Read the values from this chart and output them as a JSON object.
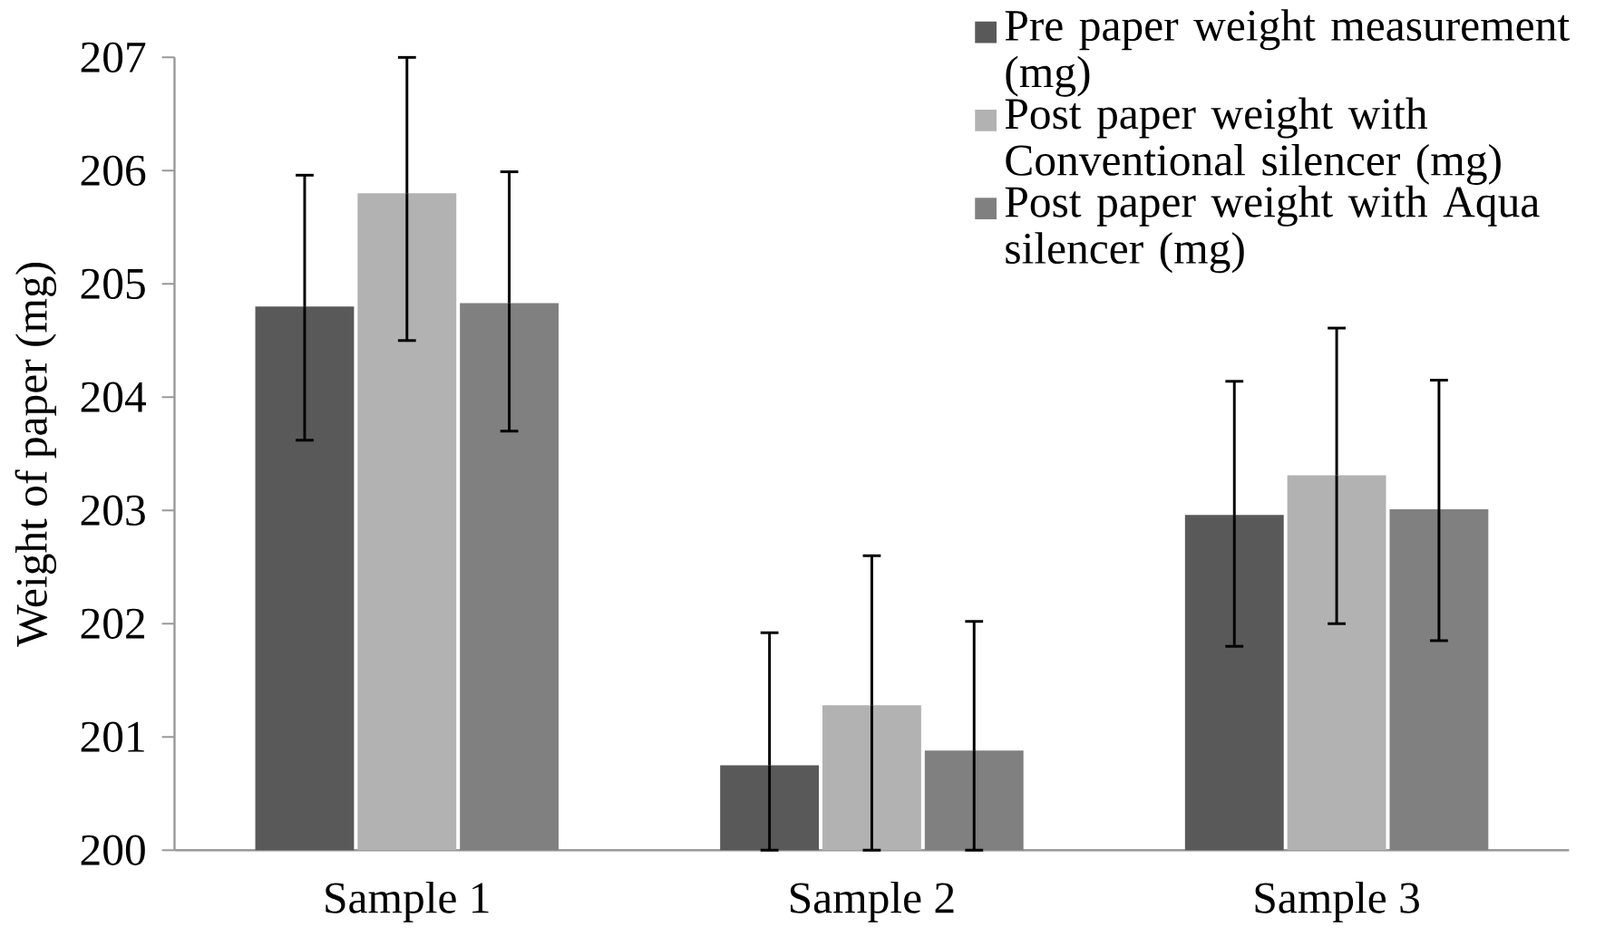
{
  "chart_data": {
    "type": "bar",
    "ylabel": "Weight of paper (mg)",
    "categories": [
      "Sample 1",
      "Sample 2",
      "Sample 3"
    ],
    "ylim": [
      200,
      207
    ],
    "yticks": [
      200,
      201,
      202,
      203,
      204,
      205,
      206,
      207
    ],
    "legend": "top right",
    "series": [
      {
        "name": "Pre paper weight measurement (mg)",
        "color": "#595959",
        "values": [
          204.8,
          200.75,
          202.96
        ],
        "errors": [
          [
            203.62,
            205.96
          ],
          [
            200,
            201.92
          ],
          [
            201.8,
            204.14
          ]
        ]
      },
      {
        "name": "Post paper weight with Conventional silencer (mg)",
        "color": "#b2b2b2",
        "values": [
          205.8,
          201.28,
          203.31
        ],
        "errors": [
          [
            204.5,
            207
          ],
          [
            200,
            202.6
          ],
          [
            202.0,
            204.61
          ]
        ]
      },
      {
        "name": "Post paper weight with Aqua silencer (mg)",
        "color": "#808080",
        "values": [
          204.83,
          200.88,
          203.01
        ],
        "errors": [
          [
            203.7,
            205.99
          ],
          [
            200,
            202.02
          ],
          [
            201.85,
            204.15
          ]
        ]
      }
    ]
  }
}
